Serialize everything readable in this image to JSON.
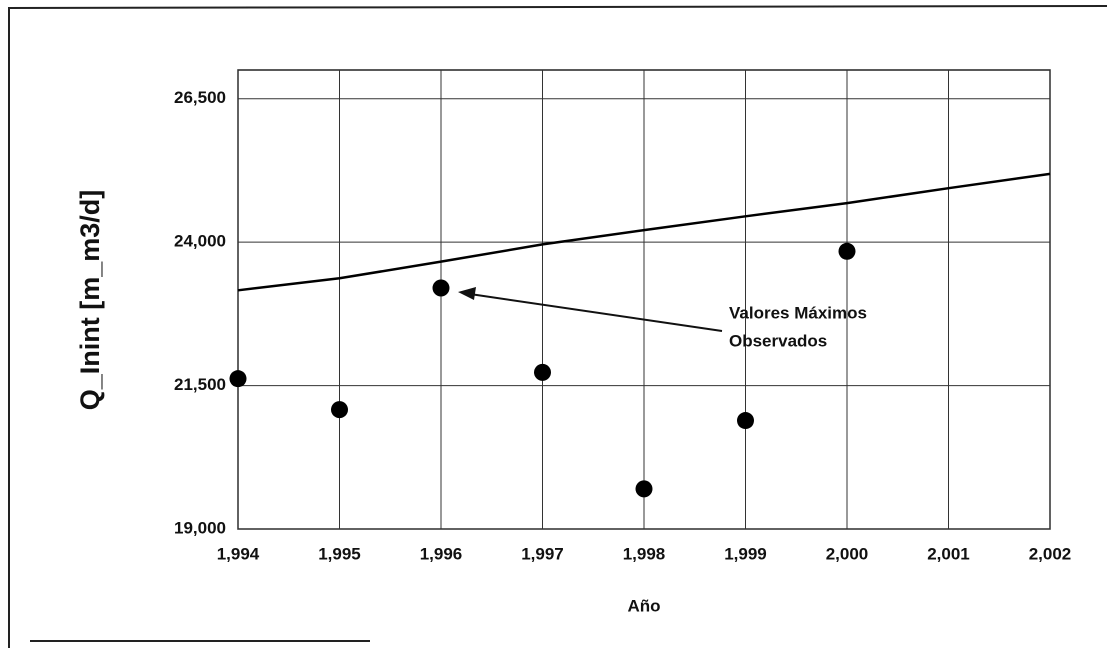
{
  "chart_data": {
    "type": "scatter",
    "y_label": "Q_Inint [m_m3/d]",
    "x_label": "Año",
    "annotation": [
      "Valores Máximos",
      "Observados"
    ],
    "xlim": [
      1994,
      2002
    ],
    "xticks": [
      {
        "value": 1994,
        "label": "1,994"
      },
      {
        "value": 1995,
        "label": "1,995"
      },
      {
        "value": 1996,
        "label": "1,996"
      },
      {
        "value": 1997,
        "label": "1,997"
      },
      {
        "value": 1998,
        "label": "1,998"
      },
      {
        "value": 1999,
        "label": "1,999"
      },
      {
        "value": 2000,
        "label": "2,000"
      },
      {
        "value": 2001,
        "label": "2,001"
      },
      {
        "value": 2002,
        "label": "2,002"
      }
    ],
    "ylim": [
      19000,
      27000
    ],
    "yticks": [
      {
        "value": 19000,
        "label": "19,000"
      },
      {
        "value": 21500,
        "label": "21,500"
      },
      {
        "value": 24000,
        "label": "24,000"
      },
      {
        "value": 26500,
        "label": "26,500"
      }
    ],
    "grid": true,
    "series": [
      {
        "type": "scatter",
        "color": "#000000",
        "x": [
          1994,
          1995,
          1996,
          1997,
          1998,
          1999,
          2000
        ],
        "values": [
          21620,
          21080,
          23200,
          21730,
          19700,
          20890,
          23840
        ]
      },
      {
        "type": "line",
        "color": "#000000",
        "x": [
          1994,
          1995,
          1996,
          1997,
          1998,
          1999,
          2000,
          2001,
          2002
        ],
        "values": [
          23160,
          23370,
          23660,
          23960,
          24210,
          24450,
          24680,
          24940,
          25190
        ]
      }
    ]
  }
}
